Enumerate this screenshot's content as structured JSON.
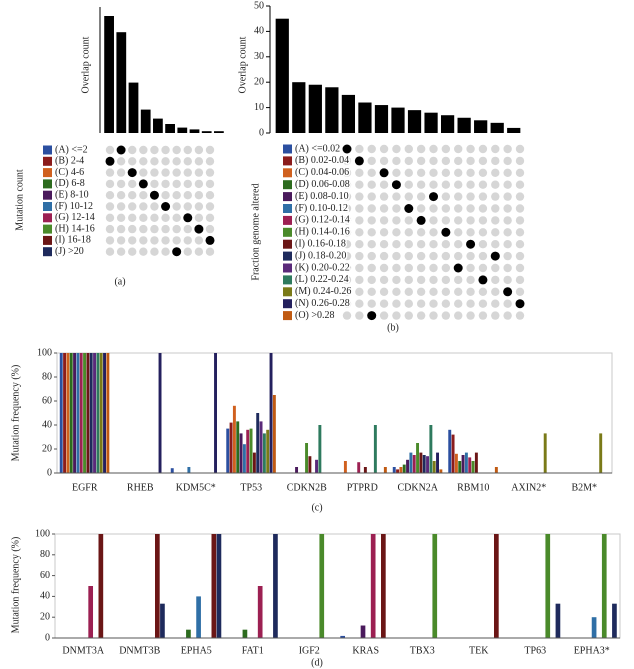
{
  "chart_data": [
    {
      "type": "upset",
      "y_label": "Overlap count",
      "set_label": "Mutation count",
      "caption": "(a)",
      "values": [
        65,
        56,
        28,
        13,
        8,
        5,
        3,
        2,
        1,
        1
      ],
      "ylim": [
        0,
        70
      ],
      "intersection_set": [
        1,
        0,
        2,
        3,
        4,
        5,
        9,
        6,
        7,
        8
      ],
      "sets": [
        {
          "name": "(A) <=2",
          "color": "#2b4fa0"
        },
        {
          "name": "(B) 2-4",
          "color": "#8b1c1c"
        },
        {
          "name": "(C) 4-6",
          "color": "#d0601e"
        },
        {
          "name": "(D) 6-8",
          "color": "#2c6b1e"
        },
        {
          "name": "(E) 8-10",
          "color": "#4a1a5c"
        },
        {
          "name": "(F) 10-12",
          "color": "#2f6fa6"
        },
        {
          "name": "(G) 12-14",
          "color": "#9c2052"
        },
        {
          "name": "(H) 14-16",
          "color": "#4a8a2a"
        },
        {
          "name": "(I) 16-18",
          "color": "#6b1616"
        },
        {
          "name": "(J) >20",
          "color": "#1e2a5c"
        }
      ]
    },
    {
      "type": "upset",
      "y_label": "Overlap count",
      "set_label": "Fraction genome altered",
      "caption": "(b)",
      "values": [
        45,
        20,
        19,
        18,
        15,
        12,
        11,
        10,
        9,
        8,
        7,
        6,
        5,
        4,
        2
      ],
      "ylim": [
        0,
        50
      ],
      "yticks": [
        0,
        10,
        20,
        30,
        40,
        50
      ],
      "intersection_set": [
        0,
        1,
        14,
        2,
        3,
        5,
        6,
        4,
        7,
        10,
        8,
        11,
        9,
        12,
        13
      ],
      "sets": [
        {
          "name": "(A) <=0.02",
          "color": "#2b4fa0"
        },
        {
          "name": "(B) 0.02-0.04",
          "color": "#8b1c1c"
        },
        {
          "name": "(C) 0.04-0.06",
          "color": "#d0601e"
        },
        {
          "name": "(D) 0.06-0.08",
          "color": "#2c6b1e"
        },
        {
          "name": "(E) 0.08-0.10",
          "color": "#4a1a5c"
        },
        {
          "name": "(F) 0.10-0.12",
          "color": "#2f6fa6"
        },
        {
          "name": "(G) 0.12-0.14",
          "color": "#9c2052"
        },
        {
          "name": "(H) 0.14-0.16",
          "color": "#4a8a2a"
        },
        {
          "name": "(I) 0.16-0.18",
          "color": "#6b1616"
        },
        {
          "name": "(J) 0.18-0.20",
          "color": "#1e2a5c"
        },
        {
          "name": "(K) 0.20-0.22",
          "color": "#5a2a7a"
        },
        {
          "name": "(L) 0.22-0.24",
          "color": "#2e7a5e"
        },
        {
          "name": "(M) 0.24-0.26",
          "color": "#7a7a18"
        },
        {
          "name": "(N) 0.26-0.28",
          "color": "#24205e"
        },
        {
          "name": "(O) >0.28",
          "color": "#c05a12"
        }
      ]
    },
    {
      "type": "bar",
      "y_label": "Mutation frequency (%)",
      "caption": "(c)",
      "categories": [
        "EGFR",
        "RHEB",
        "KDM5C*",
        "TP53",
        "CDKN2B",
        "PTPRD",
        "CDKN2A",
        "RBM10",
        "AXIN2*",
        "B2M*"
      ],
      "ylim": [
        0,
        100
      ],
      "yticks": [
        0,
        20,
        40,
        60,
        80,
        100
      ],
      "series": [
        {
          "color": "#2b4fa0",
          "values": [
            100,
            0,
            4,
            37,
            0,
            0,
            5,
            36,
            0,
            0
          ]
        },
        {
          "color": "#8b1c1c",
          "values": [
            100,
            0,
            0,
            42,
            0,
            0,
            3,
            32,
            0,
            0
          ]
        },
        {
          "color": "#d0601e",
          "values": [
            100,
            0,
            0,
            56,
            0,
            10,
            5,
            16,
            0,
            0
          ]
        },
        {
          "color": "#2c6b1e",
          "values": [
            100,
            0,
            0,
            43,
            0,
            0,
            7,
            10,
            0,
            0
          ]
        },
        {
          "color": "#4a1a5c",
          "values": [
            100,
            0,
            0,
            33,
            5,
            0,
            11,
            15,
            0,
            0
          ]
        },
        {
          "color": "#2f6fa6",
          "values": [
            100,
            0,
            5,
            24,
            0,
            0,
            17,
            17,
            0,
            0
          ]
        },
        {
          "color": "#9c2052",
          "values": [
            100,
            0,
            0,
            36,
            0,
            9,
            15,
            13,
            0,
            0
          ]
        },
        {
          "color": "#4a8a2a",
          "values": [
            100,
            0,
            0,
            37,
            25,
            0,
            25,
            10,
            0,
            0
          ]
        },
        {
          "color": "#6b1616",
          "values": [
            100,
            0,
            0,
            17,
            14,
            5,
            17,
            17,
            0,
            0
          ]
        },
        {
          "color": "#1e2a5c",
          "values": [
            100,
            0,
            0,
            50,
            0,
            0,
            15,
            0,
            0,
            0
          ]
        },
        {
          "color": "#5a2a7a",
          "values": [
            100,
            0,
            0,
            43,
            11,
            0,
            14,
            0,
            0,
            0
          ]
        },
        {
          "color": "#2e7a5e",
          "values": [
            100,
            0,
            0,
            33,
            40,
            40,
            40,
            0,
            0,
            0
          ]
        },
        {
          "color": "#7a7a18",
          "values": [
            100,
            0,
            0,
            36,
            0,
            0,
            10,
            0,
            33,
            33
          ]
        },
        {
          "color": "#24205e",
          "values": [
            100,
            100,
            100,
            100,
            0,
            0,
            17,
            0,
            0,
            0
          ]
        },
        {
          "color": "#c05a12",
          "values": [
            100,
            0,
            0,
            65,
            0,
            5,
            3,
            5,
            0,
            0
          ]
        }
      ]
    },
    {
      "type": "bar",
      "y_label": "Mutation frequency (%)",
      "caption": "(d)",
      "categories": [
        "DNMT3A",
        "DNMT3B",
        "EPHA5",
        "FAT1",
        "IGF2",
        "KRAS",
        "TBX3",
        "TEK",
        "TP63",
        "EPHA3*"
      ],
      "ylim": [
        0,
        100
      ],
      "yticks": [
        0,
        20,
        40,
        60,
        80,
        100
      ],
      "series": [
        {
          "color": "#2b4fa0",
          "values": [
            0,
            0,
            0,
            0,
            0,
            2,
            0,
            0,
            0,
            0
          ]
        },
        {
          "color": "#8b1c1c",
          "values": [
            0,
            0,
            0,
            0,
            0,
            0,
            0,
            0,
            0,
            0
          ]
        },
        {
          "color": "#d0601e",
          "values": [
            0,
            0,
            0,
            0,
            0,
            0,
            0,
            0,
            0,
            0
          ]
        },
        {
          "color": "#2c6b1e",
          "values": [
            0,
            0,
            8,
            8,
            0,
            0,
            0,
            0,
            0,
            0
          ]
        },
        {
          "color": "#4a1a5c",
          "values": [
            0,
            0,
            0,
            0,
            0,
            12,
            0,
            0,
            0,
            0
          ]
        },
        {
          "color": "#2f6fa6",
          "values": [
            0,
            0,
            40,
            0,
            0,
            0,
            0,
            0,
            0,
            20
          ]
        },
        {
          "color": "#9c2052",
          "values": [
            50,
            0,
            0,
            50,
            0,
            100,
            0,
            0,
            0,
            0
          ]
        },
        {
          "color": "#4a8a2a",
          "values": [
            0,
            0,
            0,
            0,
            100,
            0,
            100,
            0,
            100,
            100
          ]
        },
        {
          "color": "#6b1616",
          "values": [
            100,
            100,
            100,
            0,
            0,
            100,
            0,
            100,
            0,
            0
          ]
        },
        {
          "color": "#1e2a5c",
          "values": [
            0,
            33,
            100,
            100,
            0,
            0,
            0,
            0,
            33,
            33
          ]
        }
      ]
    }
  ]
}
